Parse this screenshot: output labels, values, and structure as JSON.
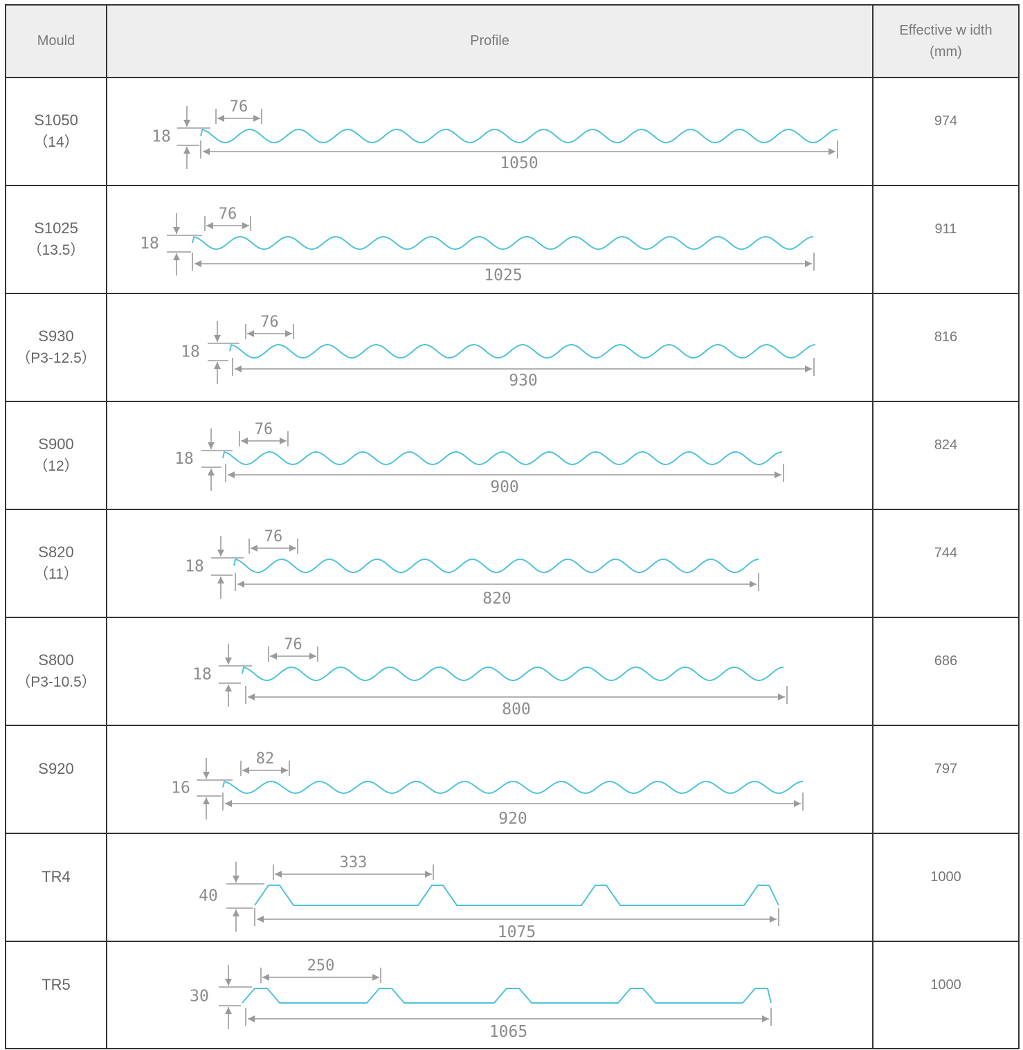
{
  "table": {
    "headers": {
      "mould": "Mould",
      "profile": "Profile",
      "effective_width_line1": "Effective w idth",
      "effective_width_line2": "(mm)"
    },
    "rows": [
      {
        "mould": "S1050",
        "sub": "（14）",
        "pitch_label": "76",
        "height_label": "18",
        "total_label": "1050",
        "effective_width": "974"
      },
      {
        "mould": "S1025",
        "sub": "（13.5）",
        "pitch_label": "76",
        "height_label": "18",
        "total_label": "1025",
        "effective_width": "911"
      },
      {
        "mould": "S930",
        "sub": "（P3-12.5）",
        "pitch_label": "76",
        "height_label": "18",
        "total_label": "930",
        "effective_width": "816"
      },
      {
        "mould": "S900",
        "sub": "（12）",
        "pitch_label": "76",
        "height_label": "18",
        "total_label": "900",
        "effective_width": "824"
      },
      {
        "mould": "S820",
        "sub": "（11）",
        "pitch_label": "76",
        "height_label": "18",
        "total_label": "820",
        "effective_width": "744"
      },
      {
        "mould": "S800",
        "sub": "（P3-10.5）",
        "pitch_label": "76",
        "height_label": "18",
        "total_label": "800",
        "effective_width": "686"
      },
      {
        "mould": "S920",
        "sub": "",
        "pitch_label": "82",
        "height_label": "16",
        "total_label": "920",
        "effective_width": "797"
      },
      {
        "mould": "TR4",
        "sub": "",
        "pitch_label": "333",
        "height_label": "40",
        "total_label": "1075",
        "effective_width": "1000"
      },
      {
        "mould": "TR5",
        "sub": "",
        "pitch_label": "250",
        "height_label": "30",
        "total_label": "1065",
        "effective_width": "1000"
      }
    ]
  },
  "colors": {
    "profile_stroke": "#4fc3d9",
    "dimension": "#9a9a9a",
    "grid": "#333333",
    "header_bg": "#eeeeee"
  }
}
